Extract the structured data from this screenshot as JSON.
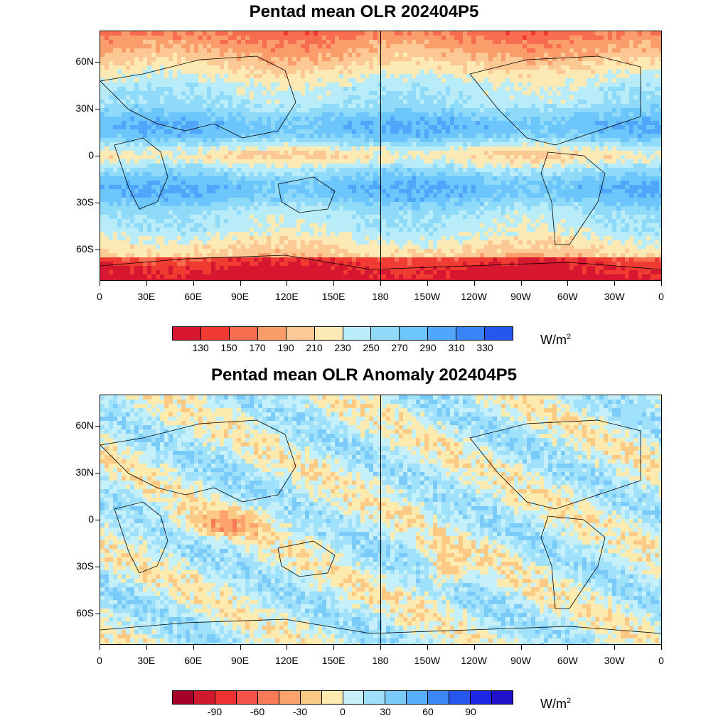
{
  "panels": [
    {
      "title": "Pentad mean OLR 202404P5",
      "unit_base": "W/m",
      "unit_exp": "2",
      "lat_labels": [
        "60N",
        "30N",
        "0",
        "30S",
        "60S"
      ],
      "lon_labels": [
        "0",
        "30E",
        "60E",
        "90E",
        "120E",
        "150E",
        "180",
        "150W",
        "120W",
        "90W",
        "60W",
        "30W",
        "0"
      ],
      "colorbar": {
        "colors": [
          "#d7172f",
          "#f03b32",
          "#f86d4f",
          "#fb9d6b",
          "#fcc893",
          "#fde9b3",
          "#b7ecf8",
          "#8fdaf9",
          "#6cc6fb",
          "#50a6fb",
          "#3a84f7",
          "#2756ee"
        ],
        "labels": [
          "130",
          "150",
          "170",
          "190",
          "210",
          "230",
          "250",
          "270",
          "290",
          "310",
          "330"
        ]
      }
    },
    {
      "title": "Pentad mean OLR Anomaly 202404P5",
      "unit_base": "W/m",
      "unit_exp": "2",
      "lat_labels": [
        "60N",
        "30N",
        "0",
        "30S",
        "60S"
      ],
      "lon_labels": [
        "0",
        "30E",
        "60E",
        "90E",
        "120E",
        "150E",
        "180",
        "150W",
        "120W",
        "90W",
        "60W",
        "30W",
        "0"
      ],
      "colorbar": {
        "colors": [
          "#a50026",
          "#d0192c",
          "#ee3232",
          "#f8534a",
          "#fb7a58",
          "#fca36d",
          "#fdca86",
          "#fdeaaf",
          "#c6f0f9",
          "#9fe0fa",
          "#7bcbfa",
          "#58aefb",
          "#3a87f7",
          "#2755ef",
          "#1c28e4",
          "#1f10cc"
        ],
        "labels": [
          "-90",
          "-60",
          "-30",
          "0",
          "30",
          "60",
          "90"
        ]
      }
    }
  ]
}
